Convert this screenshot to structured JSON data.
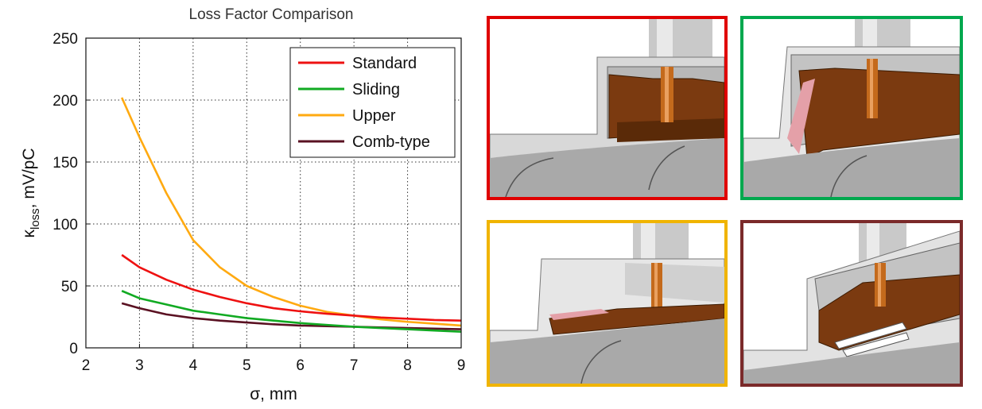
{
  "chart_data": {
    "type": "line",
    "title": "Loss Factor Comparison",
    "xlabel": "σ, mm",
    "ylabel": "κloss, mV/pC",
    "ylabel_main": "κ",
    "ylabel_sub": "loss",
    "ylabel_rest": ", mV/pC",
    "xlabel_main": "σ",
    "xlabel_rest": ", mm",
    "xlim": [
      2,
      9
    ],
    "ylim": [
      0,
      250
    ],
    "xticks": [
      2,
      3,
      4,
      5,
      6,
      7,
      8,
      9
    ],
    "yticks": [
      0,
      50,
      100,
      150,
      200,
      250
    ],
    "grid": true,
    "legend_position": "top-right",
    "series": [
      {
        "name": "Standard",
        "color": "#ee1111",
        "x": [
          2.67,
          3,
          3.5,
          4,
          4.5,
          5,
          5.5,
          6,
          6.5,
          7,
          7.5,
          8,
          8.5,
          9
        ],
        "y": [
          75,
          65,
          55,
          47,
          41,
          36,
          32,
          29.5,
          27.5,
          26,
          24.5,
          23.5,
          22.5,
          22
        ]
      },
      {
        "name": "Sliding",
        "color": "#11aa22",
        "x": [
          2.67,
          3,
          3.5,
          4,
          4.5,
          5,
          5.5,
          6,
          6.5,
          7,
          7.5,
          8,
          8.5,
          9
        ],
        "y": [
          46,
          40,
          35,
          30,
          27,
          24,
          22,
          20,
          18.5,
          17,
          16,
          15,
          14,
          13
        ]
      },
      {
        "name": "Upper",
        "color": "#ffaa11",
        "x": [
          2.67,
          3,
          3.5,
          4,
          4.5,
          5,
          5.5,
          6,
          6.5,
          7,
          7.5,
          8,
          8.5,
          9
        ],
        "y": [
          202,
          170,
          125,
          87,
          65,
          50,
          41,
          34,
          29,
          26,
          23,
          21,
          19.5,
          18
        ]
      },
      {
        "name": "Comb-type",
        "color": "#5a1122",
        "x": [
          2.67,
          3,
          3.5,
          4,
          4.5,
          5,
          5.5,
          6,
          6.5,
          7,
          7.5,
          8,
          8.5,
          9
        ],
        "y": [
          36,
          32,
          27,
          24,
          22,
          20.5,
          19,
          18,
          17.5,
          17,
          16.5,
          16,
          15.5,
          15
        ]
      }
    ]
  },
  "panels": [
    {
      "id": "standard",
      "border_color": "#e00000"
    },
    {
      "id": "sliding",
      "border_color": "#00a84e"
    },
    {
      "id": "upper",
      "border_color": "#f0b400"
    },
    {
      "id": "comb-type",
      "border_color": "#7b2a2a"
    }
  ]
}
